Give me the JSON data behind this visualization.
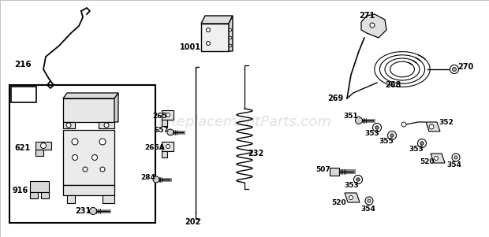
{
  "bg_color": "#ffffff",
  "watermark": "eReplacementParts.com",
  "watermark_color": "#c8c8c8",
  "watermark_alpha": 0.55,
  "fig_w": 6.2,
  "fig_h": 3.01,
  "dpi": 100
}
